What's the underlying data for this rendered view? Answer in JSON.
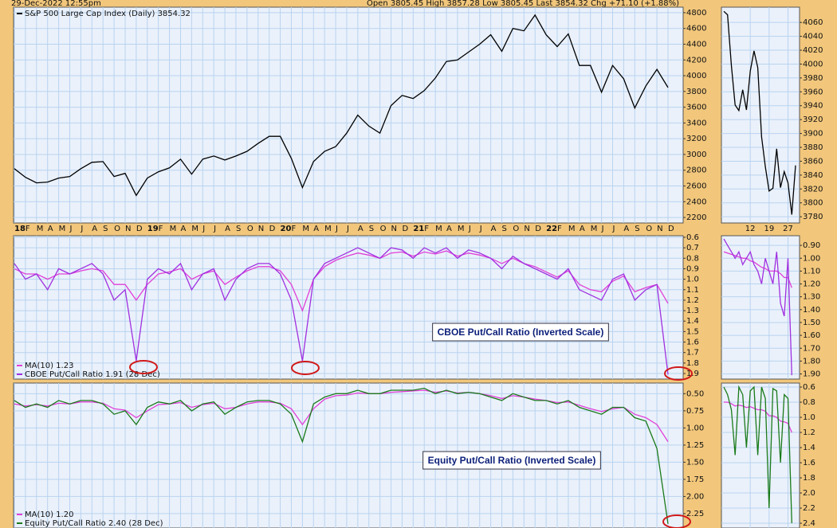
{
  "header": {
    "timestamp": "29-Dec-2022 12:55pm",
    "quote": "Open 3805.45  High 3857.28  Low 3805.45  Last 3854.32  Chg +71.10 (+1.88%)"
  },
  "chart_data": [
    {
      "type": "line",
      "legend": "upper left",
      "grid": true,
      "categories": [
        "18",
        "F",
        "M",
        "A",
        "M",
        "J",
        "J",
        "A",
        "S",
        "O",
        "N",
        "D",
        "19",
        "F",
        "M",
        "A",
        "M",
        "J",
        "J",
        "A",
        "S",
        "O",
        "N",
        "D",
        "20",
        "F",
        "M",
        "A",
        "M",
        "J",
        "J",
        "A",
        "S",
        "O",
        "N",
        "D",
        "21",
        "F",
        "M",
        "A",
        "M",
        "J",
        "J",
        "A",
        "S",
        "O",
        "N",
        "D",
        "22",
        "F",
        "M",
        "A",
        "M",
        "J",
        "J",
        "A",
        "S",
        "O",
        "N",
        "D"
      ],
      "series": [
        {
          "name": "S&P 500 Large Cap Index (Daily) 3854.32",
          "color": "#000000",
          "values": [
            2820,
            2710,
            2640,
            2650,
            2700,
            2720,
            2820,
            2900,
            2910,
            2720,
            2760,
            2480,
            2700,
            2780,
            2830,
            2940,
            2750,
            2940,
            2980,
            2930,
            2980,
            3040,
            3140,
            3230,
            3230,
            2950,
            2580,
            2910,
            3040,
            3100,
            3270,
            3500,
            3360,
            3270,
            3620,
            3750,
            3710,
            3810,
            3970,
            4180,
            4200,
            4300,
            4400,
            4520,
            4310,
            4600,
            4570,
            4770,
            4520,
            4370,
            4530,
            4130,
            4130,
            3790,
            4130,
            3960,
            3590,
            3870,
            4080,
            3850
          ]
        }
      ],
      "ylim": [
        2130,
        4870
      ],
      "yticks": [
        2200,
        2400,
        2600,
        2800,
        3000,
        3200,
        3400,
        3600,
        3800,
        4000,
        4200,
        4400,
        4600,
        4800
      ]
    },
    {
      "type": "line",
      "grid": true,
      "categories": [
        null,
        null,
        null,
        null,
        null,
        null,
        null,
        "12",
        null,
        null,
        null,
        null,
        "19",
        null,
        null,
        null,
        null,
        "27",
        null,
        null
      ],
      "series": [
        {
          "color": "#000000",
          "values": [
            4076,
            4071,
            3998,
            3941,
            3933,
            3963,
            3934,
            3990,
            4019,
            3995,
            3895,
            3852,
            3817,
            3821,
            3878,
            3822,
            3845,
            3829,
            3783,
            3854
          ]
        }
      ],
      "ylim": [
        3771,
        4082
      ],
      "yticks": [
        3780,
        3800,
        3820,
        3840,
        3860,
        3880,
        3900,
        3920,
        3940,
        3960,
        3980,
        4000,
        4020,
        4040,
        4060
      ]
    },
    {
      "type": "line",
      "legend": "lower left",
      "grid": true,
      "y_inverted": true,
      "annotation": "CBOE Put/Call Ratio (Inverted Scale)",
      "series": [
        {
          "name": "MA(10) 1.23",
          "color": "#e040d8",
          "values": [
            0.9,
            0.95,
            0.95,
            1.0,
            0.95,
            0.95,
            0.92,
            0.9,
            0.92,
            1.05,
            1.05,
            1.2,
            1.05,
            0.95,
            0.93,
            0.9,
            1.0,
            0.95,
            0.92,
            1.05,
            0.98,
            0.92,
            0.88,
            0.88,
            0.92,
            1.05,
            1.3,
            1.0,
            0.88,
            0.82,
            0.78,
            0.75,
            0.77,
            0.8,
            0.75,
            0.74,
            0.78,
            0.74,
            0.76,
            0.73,
            0.78,
            0.75,
            0.77,
            0.8,
            0.85,
            0.8,
            0.85,
            0.88,
            0.93,
            0.98,
            0.92,
            1.05,
            1.1,
            1.12,
            1.02,
            0.97,
            1.12,
            1.08,
            1.05,
            1.23
          ]
        },
        {
          "name": "CBOE Put/Call Ratio 1.91 (28 Dec)",
          "color": "#a030e0",
          "values": [
            0.85,
            1.0,
            0.95,
            1.1,
            0.9,
            0.95,
            0.9,
            0.85,
            0.95,
            1.2,
            1.1,
            1.78,
            1.0,
            0.9,
            0.95,
            0.85,
            1.1,
            0.95,
            0.9,
            1.2,
            1.0,
            0.9,
            0.85,
            0.85,
            0.95,
            1.2,
            1.78,
            1.0,
            0.85,
            0.8,
            0.75,
            0.7,
            0.75,
            0.8,
            0.7,
            0.72,
            0.8,
            0.7,
            0.75,
            0.7,
            0.8,
            0.72,
            0.75,
            0.8,
            0.9,
            0.78,
            0.85,
            0.9,
            0.95,
            1.0,
            0.9,
            1.1,
            1.15,
            1.2,
            1.0,
            0.95,
            1.2,
            1.1,
            1.05,
            1.91
          ]
        }
      ],
      "ylim": [
        0.585,
        1.953
      ],
      "yticks": [
        0.6,
        0.7,
        0.8,
        0.9,
        {
          "value": 1,
          "label": "1.0"
        },
        1.1,
        1.2,
        1.3,
        1.4,
        1.5,
        1.6,
        1.7,
        1.8,
        1.9
      ]
    },
    {
      "type": "line",
      "grid": true,
      "y_inverted": true,
      "series": [
        {
          "color": "#e040d8",
          "values": [
            0.95,
            0.96,
            0.97,
            0.98,
            0.99,
            1.0,
            1.0,
            1.02,
            1.03,
            1.05,
            1.07,
            1.08,
            1.1,
            1.1,
            1.1,
            1.12,
            1.15,
            1.15,
            1.23,
            null
          ]
        },
        {
          "color": "#a030e0",
          "values": [
            0.85,
            0.9,
            0.95,
            1.0,
            0.95,
            1.05,
            1.0,
            0.95,
            1.05,
            1.1,
            1.2,
            1.0,
            1.1,
            1.2,
            0.95,
            1.35,
            1.45,
            1.0,
            1.91,
            null
          ]
        }
      ],
      "ylim": [
        0.825,
        1.94
      ],
      "yticks": [
        {
          "value": 0.9,
          "label": "0.90"
        },
        {
          "value": 1,
          "label": "1.00"
        },
        {
          "value": 1.1,
          "label": "1.10"
        },
        {
          "value": 1.2,
          "label": "1.20"
        },
        {
          "value": 1.3,
          "label": "1.30"
        },
        {
          "value": 1.4,
          "label": "1.40"
        },
        {
          "value": 1.5,
          "label": "1.50"
        },
        {
          "value": 1.6,
          "label": "1.60"
        },
        {
          "value": 1.7,
          "label": "1.70"
        },
        {
          "value": 1.8,
          "label": "1.80"
        },
        {
          "value": 1.9,
          "label": "1.90"
        }
      ]
    },
    {
      "type": "line",
      "legend": "lower left",
      "grid": true,
      "y_inverted": true,
      "annotation": "Equity Put/Call Ratio (Inverted Scale)",
      "series": [
        {
          "name": "MA(10) 1.20",
          "color": "#e040d8",
          "values": [
            0.65,
            0.68,
            0.66,
            0.68,
            0.64,
            0.65,
            0.62,
            0.62,
            0.64,
            0.72,
            0.74,
            0.85,
            0.75,
            0.66,
            0.65,
            0.63,
            0.7,
            0.66,
            0.64,
            0.72,
            0.7,
            0.65,
            0.62,
            0.62,
            0.64,
            0.72,
            0.95,
            0.72,
            0.58,
            0.53,
            0.52,
            0.49,
            0.5,
            0.5,
            0.48,
            0.47,
            0.46,
            0.45,
            0.48,
            0.46,
            0.49,
            0.48,
            0.5,
            0.53,
            0.57,
            0.53,
            0.55,
            0.58,
            0.6,
            0.63,
            0.62,
            0.67,
            0.72,
            0.76,
            0.72,
            0.7,
            0.8,
            0.85,
            0.95,
            1.2
          ]
        },
        {
          "name": "Equity Put/Call Ratio 2.40 (28 Dec)",
          "color": "#1a7a1a",
          "values": [
            0.6,
            0.7,
            0.65,
            0.7,
            0.6,
            0.65,
            0.6,
            0.6,
            0.65,
            0.8,
            0.75,
            0.95,
            0.7,
            0.62,
            0.65,
            0.6,
            0.75,
            0.65,
            0.62,
            0.8,
            0.7,
            0.62,
            0.6,
            0.6,
            0.65,
            0.8,
            1.2,
            0.65,
            0.55,
            0.5,
            0.5,
            0.45,
            0.5,
            0.5,
            0.45,
            0.45,
            0.45,
            0.42,
            0.5,
            0.45,
            0.5,
            0.48,
            0.5,
            0.55,
            0.6,
            0.5,
            0.55,
            0.6,
            0.6,
            0.65,
            0.6,
            0.7,
            0.75,
            0.8,
            0.7,
            0.7,
            0.85,
            0.9,
            1.3,
            2.4
          ]
        }
      ],
      "ylim": [
        0.345,
        2.46
      ],
      "yticks": [
        {
          "value": 0.5,
          "label": "0.50"
        },
        0.75,
        {
          "value": 1,
          "label": "1.00"
        },
        1.25,
        {
          "value": 1.5,
          "label": "1.50"
        },
        1.75,
        {
          "value": 2,
          "label": "2.00"
        },
        2.25
      ]
    },
    {
      "type": "line",
      "grid": true,
      "y_inverted": true,
      "series": [
        {
          "color": "#e040d8",
          "values": [
            0.8,
            0.8,
            0.82,
            0.85,
            0.84,
            0.85,
            0.87,
            0.86,
            0.88,
            0.9,
            0.9,
            0.92,
            0.98,
            0.98,
            1.0,
            1.05,
            1.06,
            1.08,
            1.2,
            null
          ]
        },
        {
          "color": "#1a7a1a",
          "values": [
            0.6,
            0.7,
            0.9,
            1.5,
            0.6,
            0.7,
            1.4,
            0.65,
            0.6,
            1.5,
            0.6,
            0.75,
            2.2,
            0.62,
            0.65,
            1.6,
            0.7,
            0.75,
            2.4,
            null
          ]
        }
      ],
      "ylim": [
        0.547,
        2.463
      ],
      "yticks": [
        0.6,
        0.8,
        {
          "value": 1,
          "label": "1.0"
        },
        1.2,
        1.4,
        1.6,
        1.8,
        {
          "value": 2,
          "label": "2.0"
        },
        2.2,
        2.4
      ]
    }
  ]
}
